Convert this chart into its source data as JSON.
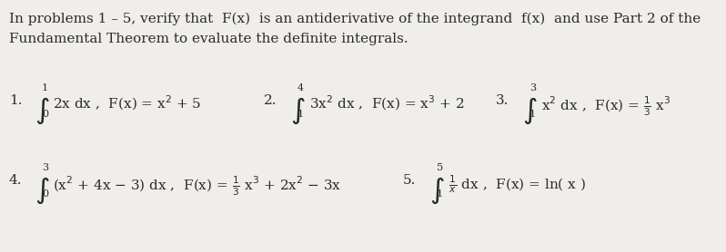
{
  "bg_color": "#f0eeea",
  "text_color": "#2a2a2a",
  "figsize": [
    7.98,
    2.78
  ],
  "dpi": 100,
  "title_line1": "In problems 1 – 5, verify that  F(x)  is an antiderivative of the integrand  f(x)  and use Part 2 of the",
  "title_line2": "Fundamental Theorem to evaluate the definite integrals.",
  "font_size": 11.0,
  "font_size_small": 8.0,
  "font_size_integral": 16.0
}
